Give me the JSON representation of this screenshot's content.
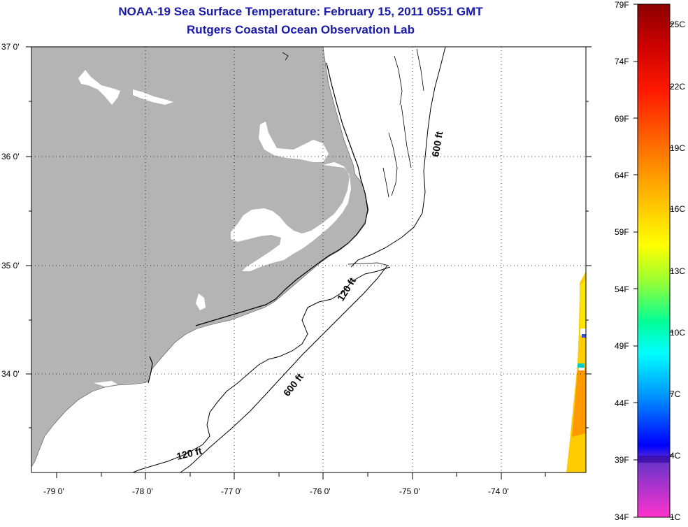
{
  "title": {
    "line1": "NOAA-19 Sea Surface Temperature:  February 15, 2011 0551 GMT",
    "line2": "Rutgers Coastal Ocean Observation Lab"
  },
  "map": {
    "lat_labels": [
      "37 0'",
      "36 0'",
      "35 0'",
      "34 0'"
    ],
    "lon_labels": [
      "-79 0'",
      "-78 0'",
      "-77 0'",
      "-76 0'",
      "-75 0'",
      "-74 0'"
    ],
    "contour_labels": {
      "c600_north": "600 ft",
      "c120_mid": "120 ft",
      "c600_south": "600 ft",
      "c120_south": "120 ft"
    },
    "land_color": "#b4b4b4",
    "contour_color": "#000000"
  },
  "colorbar": {
    "f_labels": [
      "79F",
      "74F",
      "69F",
      "64F",
      "59F",
      "54F",
      "49F",
      "44F",
      "39F",
      "34F"
    ],
    "c_labels": [
      "25C",
      "22C",
      "19C",
      "16C",
      "13C",
      "10C",
      "7C",
      "4C",
      "1C"
    ],
    "stops": [
      "#8b0000",
      "#ff0000",
      "#ff8c00",
      "#ffd700",
      "#ffff00",
      "#7fff00",
      "#00ff7f",
      "#00ffff",
      "#0080ff",
      "#0000ff",
      "#8a2be2",
      "#ff33cc"
    ]
  }
}
